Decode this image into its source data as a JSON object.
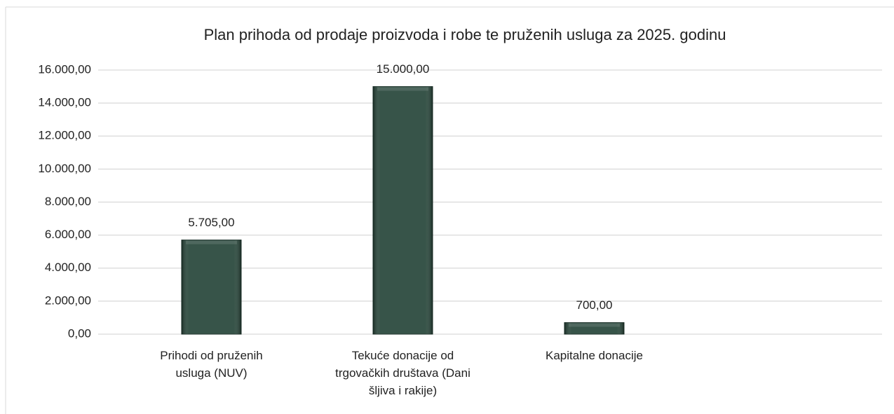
{
  "chart_data": {
    "type": "bar",
    "title": "Plan prihoda od prodaje proizvoda i robe te pruženih usluga za 2025. godinu",
    "categories": [
      "Prihodi od pruženih usluga (NUV)",
      "Tekuće donacije od trgovačkih društava (Dani šljiva i rakije)",
      "Kapitalne donacije",
      null
    ],
    "values": [
      5705,
      15000,
      700,
      null
    ],
    "value_labels": [
      "5.705,00",
      "15.000,00",
      "700,00",
      null
    ],
    "color": "#264539",
    "ylim": [
      0,
      16000
    ],
    "yticks": [
      {
        "value": 0,
        "label": "0,00"
      },
      {
        "value": 2000,
        "label": "2.000,00"
      },
      {
        "value": 4000,
        "label": "4.000,00"
      },
      {
        "value": 6000,
        "label": "6.000,00"
      },
      {
        "value": 8000,
        "label": "8.000,00"
      },
      {
        "value": 10000,
        "label": "10.000,00"
      },
      {
        "value": 12000,
        "label": "12.000,00"
      },
      {
        "value": 14000,
        "label": "14.000,00"
      },
      {
        "value": 16000,
        "label": "16.000,00"
      }
    ],
    "grid": true
  }
}
